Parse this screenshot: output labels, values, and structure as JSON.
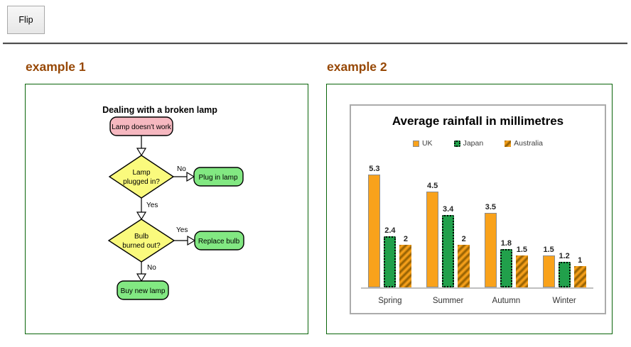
{
  "toolbar": {
    "flip_label": "Flip"
  },
  "example1": {
    "heading": "example 1",
    "flowchart": {
      "title": "Dealing with a broken lamp",
      "start": "Lamp doesn't work",
      "decision1_line1": "Lamp",
      "decision1_line2": "plugged in?",
      "label_no1": "No",
      "action_no1": "Plug in lamp",
      "label_yes1": "Yes",
      "decision2_line1": "Bulb",
      "decision2_line2": "burned out?",
      "label_yes2": "Yes",
      "action_yes2": "Replace bulb",
      "label_no2": "No",
      "action_final": "Buy new lamp",
      "colors": {
        "start_fill": "#f6b8c0",
        "decision_fill": "#fafa7d",
        "action_fill": "#82e882",
        "stroke": "#000000"
      }
    }
  },
  "example2": {
    "heading": "example 2"
  },
  "chart_data": {
    "type": "bar",
    "title": "Average rainfall in millimetres",
    "categories": [
      "Spring",
      "Summer",
      "Autumn",
      "Winter"
    ],
    "series": [
      {
        "name": "UK",
        "values": [
          5.3,
          4.5,
          3.5,
          1.5
        ],
        "color": "#f9a21b",
        "pattern": "solid",
        "border_color": "#8c8c8c"
      },
      {
        "name": "Japan",
        "values": [
          2.4,
          3.4,
          1.8,
          1.2
        ],
        "color": "#21a04b",
        "pattern": "dotted-border",
        "border_color": "#000000"
      },
      {
        "name": "Australia",
        "values": [
          2,
          2,
          1.5,
          1
        ],
        "color": "#f9a21b",
        "pattern": "diagonal-hatch",
        "hatch_color": "#8a5a00"
      }
    ],
    "ylim": [
      0,
      5.5
    ],
    "grid": false,
    "legend_position": "top",
    "value_labels": true,
    "baseline_color": "#bfbfbf"
  },
  "colors": {
    "heading_text": "#974806",
    "panel_border": "#0a650a",
    "chart_border": "#ababab",
    "divider": "#4c4c4c"
  }
}
